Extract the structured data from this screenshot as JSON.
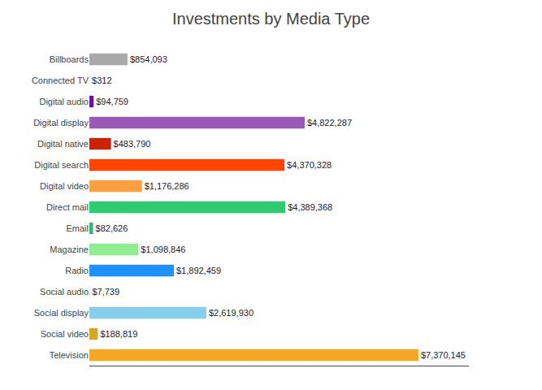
{
  "chart_data": {
    "type": "bar",
    "orientation": "horizontal",
    "title": "Investments by Media Type",
    "categories": [
      "Billboards",
      "Connected TV",
      "Digital audio",
      "Digital display",
      "Digital native",
      "Digital search",
      "Digital video",
      "Direct mail",
      "Email",
      "Magazine",
      "Radio",
      "Social audio",
      "Social display",
      "Social video",
      "Television"
    ],
    "values": [
      854093,
      312,
      94759,
      4822287,
      483790,
      4370328,
      1176286,
      4389368,
      82626,
      1098846,
      1892459,
      7739,
      2619930,
      188819,
      7370145
    ],
    "value_labels": [
      "$854,093",
      "$312",
      "$94,759",
      "$4,822,287",
      "$483,790",
      "$4,370,328",
      "$1,176,286",
      "$4,389,368",
      "$82,626",
      "$1,098,846",
      "$1,892,459",
      "$7,739",
      "$2,619,930",
      "$188,819",
      "$7,370,145"
    ],
    "colors": [
      "#A9A9A9",
      "#4B0082",
      "#6A0DAD",
      "#9B59B6",
      "#CC2200",
      "#FF4500",
      "#FFA040",
      "#2ECC71",
      "#3CB371",
      "#90EE90",
      "#1E90FF",
      "#ADD8E6",
      "#87CEEB",
      "#DAA520",
      "#F5A623"
    ],
    "xlim": [
      0,
      8500000
    ],
    "data_labels": true,
    "tick_labels": "y",
    "grid": false
  }
}
